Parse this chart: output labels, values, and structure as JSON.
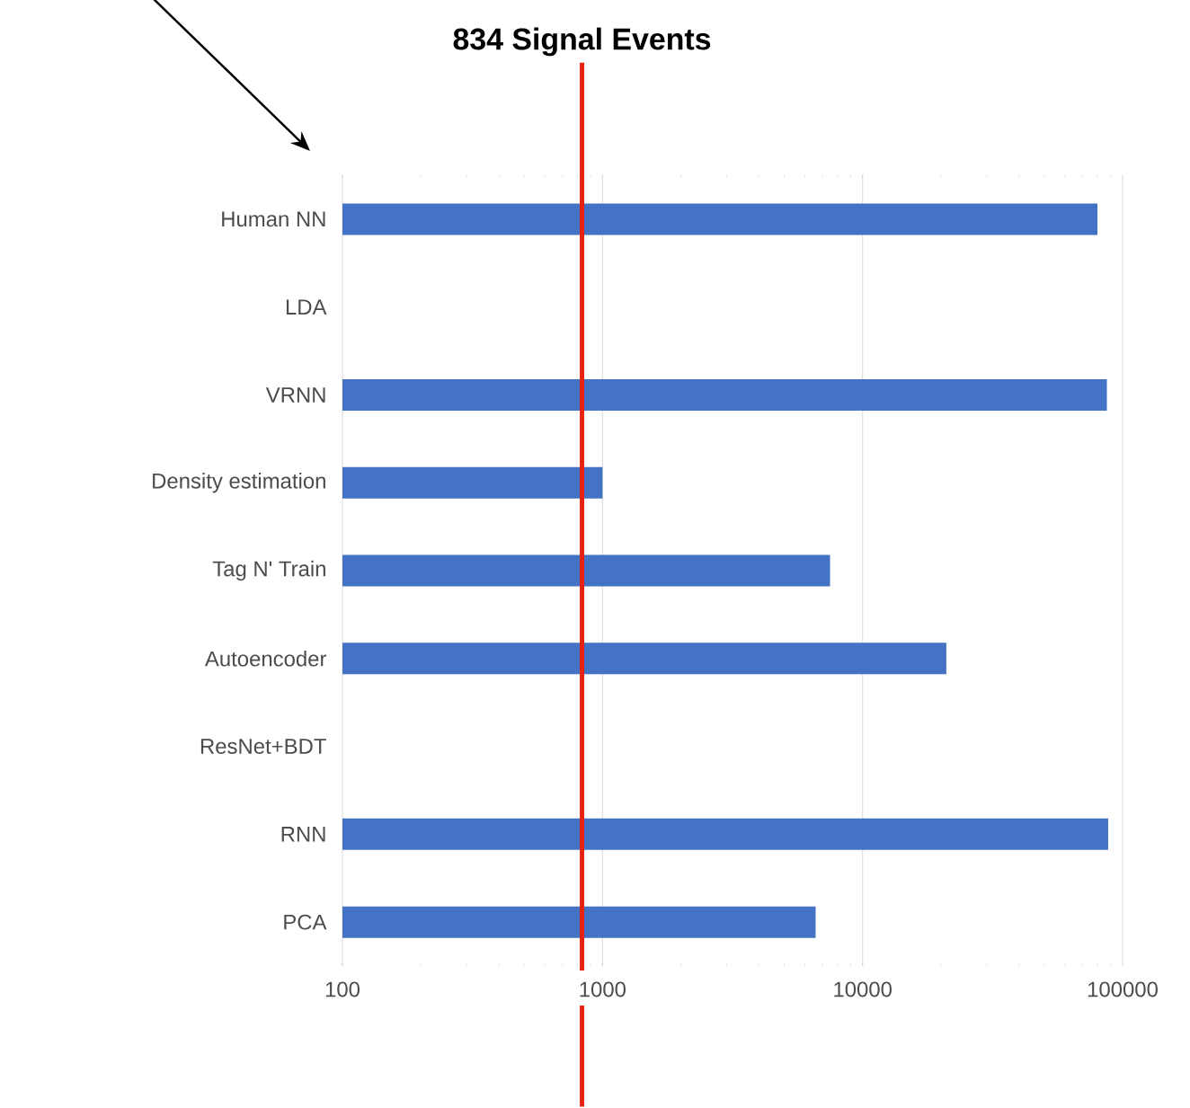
{
  "chart_data": {
    "type": "bar",
    "orientation": "horizontal",
    "log": "x",
    "grid": "x",
    "categories": [
      "Human NN",
      "LDA",
      "VRNN",
      "Density estimation",
      "Tag N' Train",
      "Autoencoder",
      "ResNet+BDT",
      "RNN",
      "PCA"
    ],
    "values": [
      80000,
      null,
      87000,
      1000,
      7500,
      21000,
      null,
      88000,
      6600
    ],
    "color": "#4472c4",
    "xlim": [
      100,
      100000
    ],
    "xticks": [
      100,
      1000,
      10000,
      100000
    ],
    "ref_lines": [
      {
        "axis": "x",
        "value": 834,
        "label": "834 Signal Events",
        "color": "#e62310"
      }
    ]
  }
}
